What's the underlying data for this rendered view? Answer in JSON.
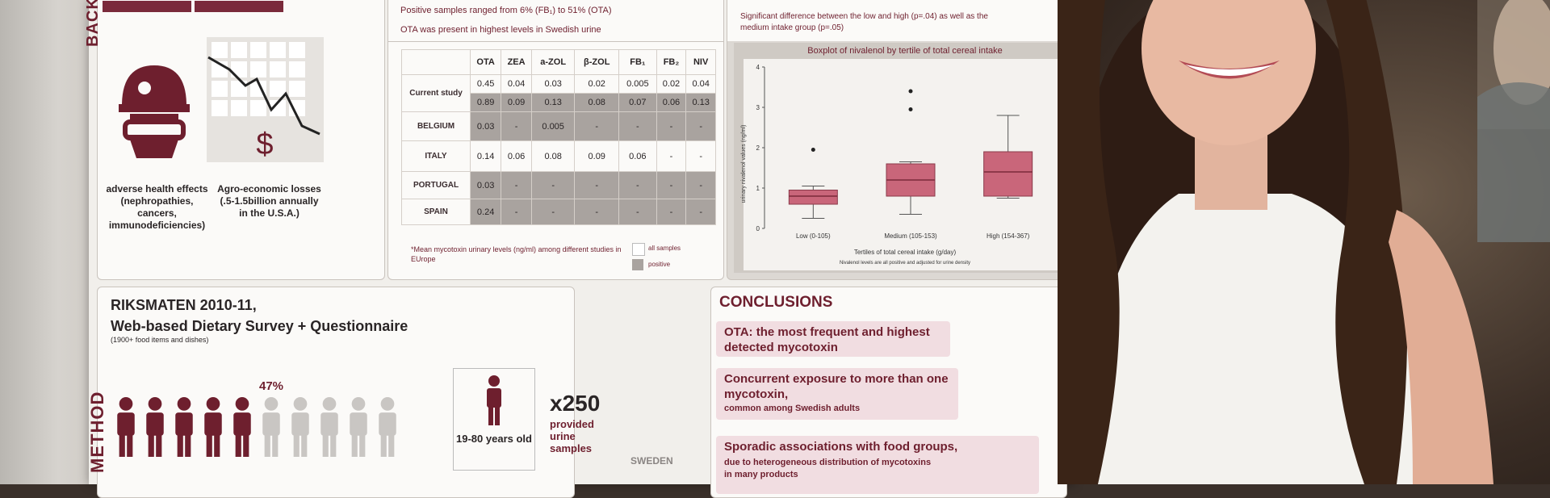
{
  "top_text": {
    "line1": "Positive samples ranged from 6% (FB₁) to 51% (OTA)",
    "line2": "OTA was present in highest levels in Swedish urine",
    "right_note_1": "Significant difference between the low and high (p=.04) as well as the",
    "right_note_2": "medium intake group (p=.05)"
  },
  "background_section": {
    "side_label": "BACK",
    "health_caption": "adverse health effects (nephropathies, cancers, immunodeficiencies)",
    "econ_caption": "Agro-economic losses (.5-1.5billion annually in the U.S.A.)",
    "dollar": "$"
  },
  "table": {
    "headers": [
      "",
      "OTA",
      "ZEA",
      "a-ZOL",
      "β-ZOL",
      "FB₁",
      "FB₂",
      "NIV"
    ],
    "rows": [
      {
        "country": "Current study",
        "values": [
          "0.45",
          "0.04",
          "0.03",
          "0.02",
          "0.005",
          "0.02",
          "0.04"
        ],
        "positive": false
      },
      {
        "country": "",
        "values": [
          "0.89",
          "0.09",
          "0.13",
          "0.08",
          "0.07",
          "0.06",
          "0.13"
        ],
        "positive": true
      },
      {
        "country": "BELGIUM",
        "values": [
          "0.03",
          "-",
          "0.005",
          "-",
          "-",
          "-",
          "-"
        ],
        "positive": true
      },
      {
        "country": "ITALY",
        "values": [
          "0.14",
          "0.06",
          "0.08",
          "0.09",
          "0.06",
          "-",
          "-"
        ],
        "positive": false
      },
      {
        "country": "PORTUGAL",
        "values": [
          "0.03",
          "-",
          "-",
          "-",
          "-",
          "-",
          "-"
        ],
        "positive": true
      },
      {
        "country": "SPAIN",
        "values": [
          "0.24",
          "-",
          "-",
          "-",
          "-",
          "-",
          "-"
        ],
        "positive": true
      }
    ],
    "footnote": "*Mean mycotoxin urinary levels (ng/ml) among different studies in EUrope",
    "legend_all": "all samples",
    "legend_pos": "positive"
  },
  "boxplot": {
    "title": "Boxplot of nivalenol by tertile of total cereal intake",
    "ylabel": "urinary nivalenol values (ng/ml)",
    "xlabel": "Tertiles of total cereal intake (g/day)",
    "footnote": "Nivalenol levels are all positive and adjusted for urine density",
    "yticks": [
      "0",
      "1",
      "2",
      "3",
      "4"
    ],
    "categories": [
      "Low (0-105)",
      "Medium (105-153)",
      "High (154-367)"
    ]
  },
  "chart_data": {
    "type": "box",
    "title": "Boxplot of nivalenol by tertile of total cereal intake",
    "xlabel": "Tertiles of total cereal intake (g/day)",
    "ylabel": "urinary nivalenol values (ng/ml)",
    "ylim": [
      0,
      4
    ],
    "categories": [
      "Low (0-105)",
      "Medium (105-153)",
      "High (154-367)"
    ],
    "boxes": [
      {
        "min": 0.25,
        "q1": 0.6,
        "median": 0.8,
        "q3": 0.95,
        "max": 1.05,
        "outliers": [
          1.95
        ]
      },
      {
        "min": 0.35,
        "q1": 0.8,
        "median": 1.2,
        "q3": 1.6,
        "max": 1.65,
        "outliers": [
          2.95,
          3.4
        ]
      },
      {
        "min": 0.75,
        "q1": 0.8,
        "median": 1.4,
        "q3": 1.9,
        "max": 2.8,
        "outliers": []
      }
    ]
  },
  "method": {
    "side_label": "METHOD",
    "title_1": "RIKSMATEN 2010-11,",
    "title_2": "Web-based Dietary Survey + Questionnaire",
    "subtitle": "(1900+ food items and dishes)",
    "percent": "47%",
    "age": "19-80 years old",
    "x250": "x250",
    "samples": "provided urine samples",
    "country": "SWEDEN"
  },
  "conclusions": {
    "title": "CONCLUSIONS",
    "c1_main": "OTA: the most frequent and highest detected mycotoxin",
    "c2_main": "Concurrent exposure to more than one mycotoxin,",
    "c2_sub": "common among Swedish adults",
    "c3_main": "Sporadic associations with food groups,",
    "c3_sub": "due to heterogeneous distribution of mycotoxins in many products"
  },
  "colors": {
    "accent": "#6e1f2e",
    "positive_cell": "#a9a39f",
    "box_fill": "#c9667a"
  }
}
